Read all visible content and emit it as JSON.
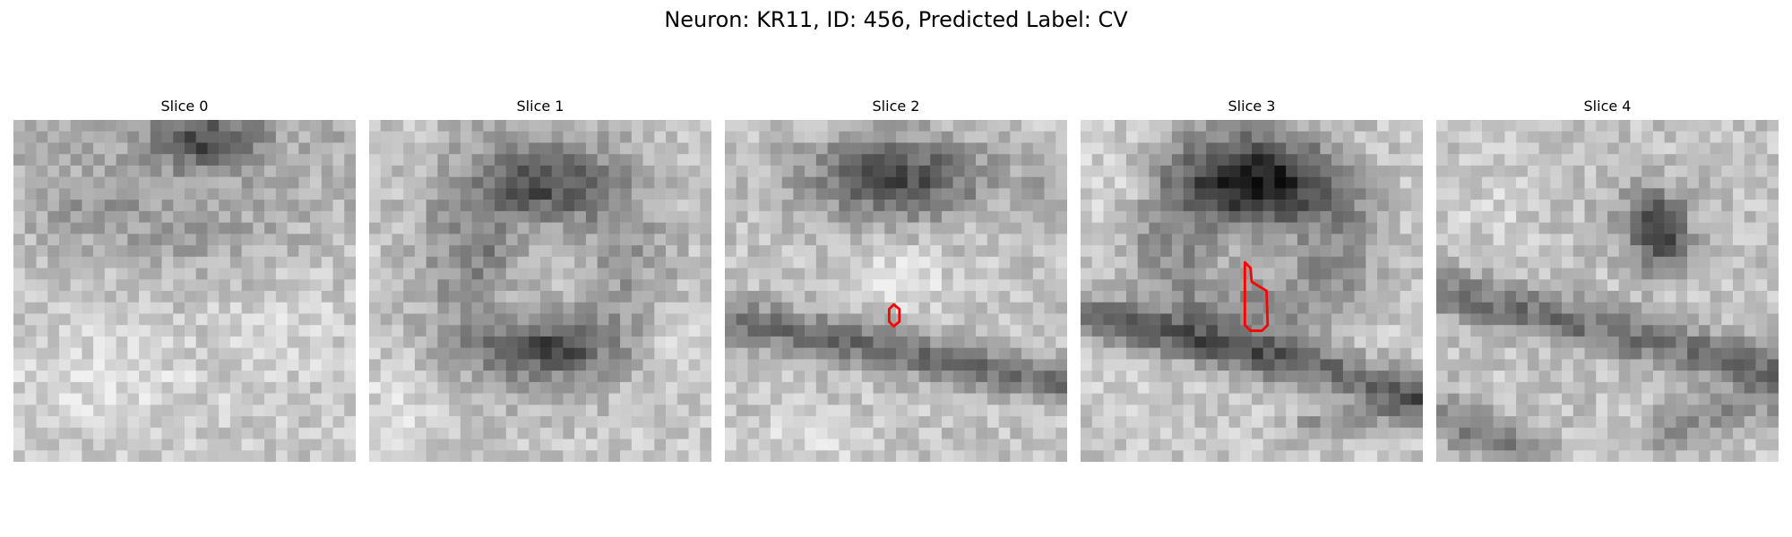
{
  "suptitle": "Neuron: KR11, ID: 456, Predicted Label: CV",
  "contour_color": "#ff0000",
  "panels": [
    {
      "title": "Slice 0"
    },
    {
      "title": "Slice 1"
    },
    {
      "title": "Slice 2"
    },
    {
      "title": "Slice 3"
    },
    {
      "title": "Slice 4"
    }
  ]
}
